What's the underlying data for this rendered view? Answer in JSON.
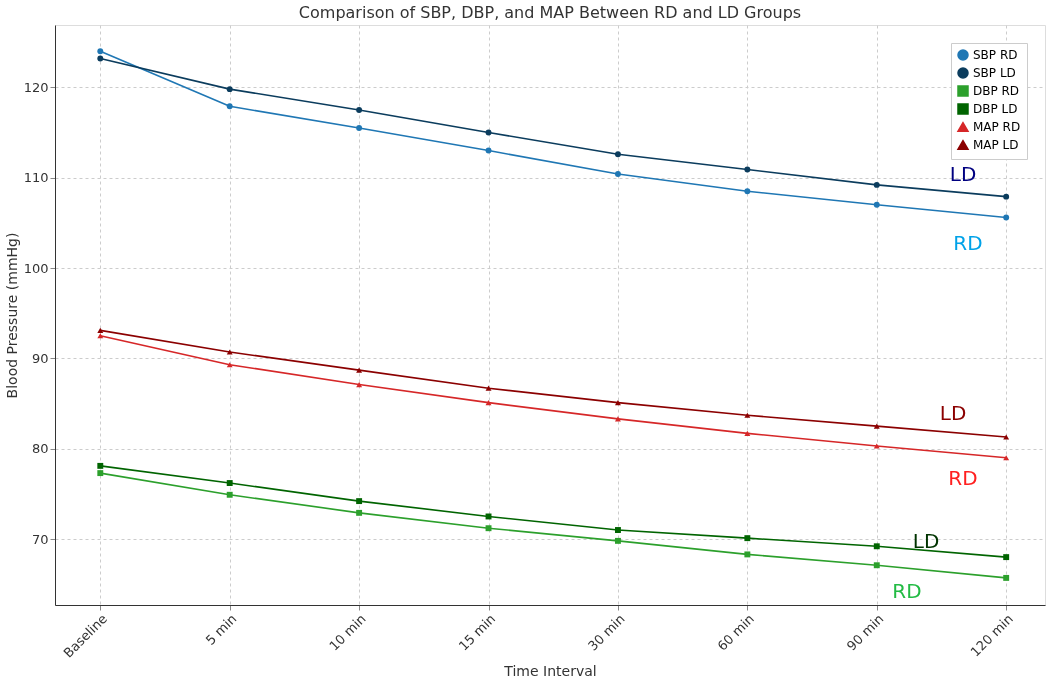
{
  "chart_data": {
    "type": "line",
    "title": "Comparison of SBP, DBP, and MAP Between RD and LD Groups",
    "xlabel": "Time Interval",
    "ylabel": "Blood Pressure (mmHg)",
    "categories": [
      "Baseline",
      "5 min",
      "10 min",
      "15 min",
      "30 min",
      "60 min",
      "90 min",
      "120 min"
    ],
    "series": [
      {
        "name": "SBP RD",
        "color": "#1f77b4",
        "marker": "circle",
        "values": [
          124.0,
          117.9,
          115.5,
          113.0,
          110.4,
          108.5,
          107.0,
          105.6
        ]
      },
      {
        "name": "SBP LD",
        "color": "#0b3c5d",
        "marker": "circle",
        "values": [
          123.2,
          119.8,
          117.5,
          115.0,
          112.6,
          110.9,
          109.2,
          107.9
        ]
      },
      {
        "name": "DBP RD",
        "color": "#2ca02c",
        "marker": "square",
        "values": [
          77.3,
          74.9,
          72.9,
          71.2,
          69.8,
          68.3,
          67.1,
          65.7
        ]
      },
      {
        "name": "DBP LD",
        "color": "#006400",
        "marker": "square",
        "values": [
          78.1,
          76.2,
          74.2,
          72.5,
          71.0,
          70.1,
          69.2,
          68.0
        ]
      },
      {
        "name": "MAP RD",
        "color": "#d62728",
        "marker": "triangle",
        "values": [
          92.5,
          89.3,
          87.1,
          85.1,
          83.3,
          81.7,
          80.3,
          79.0
        ]
      },
      {
        "name": "MAP LD",
        "color": "#8b0000",
        "marker": "triangle",
        "values": [
          93.1,
          90.7,
          88.7,
          86.7,
          85.1,
          83.7,
          82.5,
          81.3
        ]
      }
    ],
    "annotations": [
      "LD",
      "RD",
      "LD",
      "RD",
      "LD",
      "RD"
    ],
    "ylim": [
      62.7,
      126.9
    ],
    "yticks": [
      70,
      80,
      90,
      100,
      110,
      120
    ],
    "grid": true,
    "legend": "top right",
    "line_style": "solid"
  }
}
